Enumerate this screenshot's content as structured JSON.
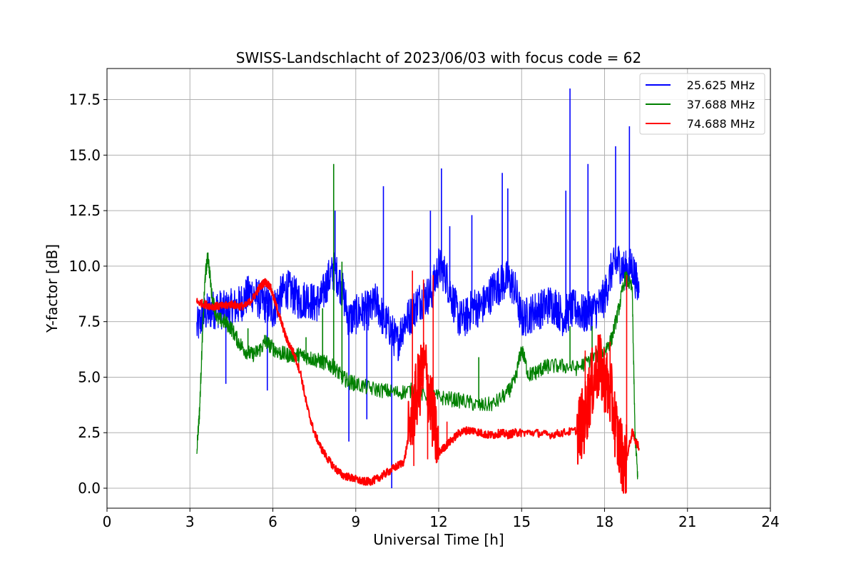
{
  "chart_data": {
    "type": "line",
    "title": "SWISS-Landschlacht of 2023/06/03 with focus code = 62",
    "xlabel": "Universal Time [h]",
    "ylabel": "Y-factor [dB]",
    "xlim": [
      0,
      24
    ],
    "ylim": [
      -0.9,
      18.9
    ],
    "xticks": [
      0,
      3,
      6,
      9,
      12,
      15,
      18,
      21,
      24
    ],
    "xtick_labels": [
      "0",
      "3",
      "6",
      "9",
      "12",
      "15",
      "18",
      "21",
      "24"
    ],
    "yticks": [
      0.0,
      2.5,
      5.0,
      7.5,
      10.0,
      12.5,
      15.0,
      17.5
    ],
    "ytick_labels": [
      "0.0",
      "2.5",
      "5.0",
      "7.5",
      "10.0",
      "12.5",
      "15.0",
      "17.5"
    ],
    "grid": true,
    "legend_position": "top-right",
    "series": [
      {
        "name": "25.625 MHz",
        "color": "#0000ff",
        "x": [
          3.25,
          3.5,
          3.75,
          4.0,
          4.25,
          4.5,
          4.75,
          5.0,
          5.25,
          5.5,
          5.75,
          6.0,
          6.25,
          6.5,
          6.75,
          7.0,
          7.25,
          7.5,
          7.75,
          8.0,
          8.25,
          8.5,
          8.75,
          9.0,
          9.25,
          9.5,
          9.75,
          10.0,
          10.25,
          10.5,
          10.75,
          11.0,
          11.25,
          11.5,
          11.75,
          12.0,
          12.25,
          12.5,
          12.75,
          13.0,
          13.25,
          13.5,
          13.75,
          14.0,
          14.25,
          14.5,
          14.75,
          15.0,
          15.25,
          15.5,
          15.75,
          16.0,
          16.25,
          16.5,
          16.75,
          17.0,
          17.25,
          17.5,
          17.75,
          18.0,
          18.25,
          18.5,
          18.75,
          19.0,
          19.25
        ],
        "y": [
          7.2,
          7.8,
          8.0,
          8.1,
          8.0,
          8.1,
          8.2,
          8.6,
          8.8,
          8.5,
          8.3,
          8.0,
          8.6,
          9.0,
          8.7,
          8.4,
          8.6,
          8.3,
          8.5,
          9.4,
          9.8,
          9.0,
          7.6,
          7.8,
          8.0,
          8.0,
          8.4,
          7.6,
          7.2,
          6.5,
          7.5,
          7.8,
          8.4,
          8.6,
          8.8,
          10.0,
          9.6,
          8.5,
          7.6,
          7.7,
          8.2,
          8.1,
          8.5,
          9.0,
          9.2,
          9.4,
          9.0,
          7.6,
          7.8,
          8.0,
          8.1,
          8.3,
          8.2,
          7.7,
          8.0,
          8.1,
          7.8,
          8.0,
          8.1,
          8.6,
          9.8,
          10.2,
          9.8,
          10.0,
          8.8
        ],
        "spikes": [
          [
            4.3,
            4.7
          ],
          [
            5.8,
            4.4
          ],
          [
            8.25,
            12.5
          ],
          [
            8.75,
            2.1
          ],
          [
            9.4,
            3.1
          ],
          [
            10.0,
            13.6
          ],
          [
            10.3,
            0.0
          ],
          [
            11.7,
            12.5
          ],
          [
            12.1,
            14.4
          ],
          [
            12.4,
            11.8
          ],
          [
            13.2,
            12.3
          ],
          [
            14.3,
            14.2
          ],
          [
            14.5,
            13.5
          ],
          [
            16.6,
            13.4
          ],
          [
            16.75,
            18.0
          ],
          [
            17.4,
            14.6
          ],
          [
            18.4,
            15.4
          ],
          [
            18.9,
            16.3
          ]
        ]
      },
      {
        "name": "37.688 MHz",
        "color": "#008000",
        "x": [
          3.25,
          3.35,
          3.45,
          3.55,
          3.65,
          3.8,
          4.0,
          4.25,
          4.5,
          4.75,
          5.0,
          5.25,
          5.5,
          5.75,
          6.0,
          6.25,
          6.5,
          6.75,
          7.0,
          7.25,
          7.5,
          7.75,
          8.0,
          8.25,
          8.5,
          8.75,
          9.0,
          9.5,
          10.0,
          10.5,
          11.0,
          11.5,
          12.0,
          12.5,
          13.0,
          13.5,
          14.0,
          14.5,
          14.75,
          15.0,
          15.25,
          15.5,
          15.75,
          16.0,
          16.5,
          17.0,
          17.5,
          18.0,
          18.25,
          18.5,
          18.75,
          19.0,
          19.1,
          19.2
        ],
        "y": [
          1.8,
          3.5,
          6.8,
          9.5,
          10.5,
          8.6,
          7.6,
          7.5,
          7.2,
          6.6,
          6.2,
          6.0,
          6.2,
          6.6,
          6.3,
          6.1,
          6.0,
          6.0,
          6.0,
          5.9,
          5.8,
          5.7,
          5.6,
          5.4,
          5.0,
          4.8,
          4.7,
          4.5,
          4.4,
          4.3,
          4.4,
          4.2,
          4.1,
          4.0,
          3.9,
          3.7,
          3.8,
          4.3,
          4.8,
          6.3,
          5.1,
          5.2,
          5.4,
          5.5,
          5.5,
          5.4,
          5.8,
          6.2,
          6.7,
          8.0,
          9.5,
          9.0,
          2.5,
          0.5
        ],
        "spikes": [
          [
            5.1,
            7.2
          ],
          [
            5.7,
            6.9
          ],
          [
            7.2,
            6.8
          ],
          [
            7.8,
            8.1
          ],
          [
            8.2,
            14.6
          ],
          [
            8.5,
            10.2
          ],
          [
            13.45,
            5.9
          ],
          [
            16.75,
            7.3
          ],
          [
            17.55,
            7.3
          ]
        ]
      },
      {
        "name": "74.688 MHz",
        "color": "#ff0000",
        "x": [
          3.25,
          3.5,
          3.75,
          4.0,
          4.25,
          4.5,
          4.75,
          5.0,
          5.25,
          5.5,
          5.7,
          5.9,
          6.1,
          6.3,
          6.5,
          6.75,
          7.0,
          7.25,
          7.5,
          7.75,
          8.0,
          8.25,
          8.5,
          8.75,
          9.0,
          9.25,
          9.5,
          9.75,
          10.0,
          10.25,
          10.5,
          10.75,
          11.0,
          11.25,
          11.5,
          11.75,
          12.0,
          12.25,
          12.5,
          12.75,
          13.0,
          13.25,
          13.5,
          13.75,
          14.0,
          14.25,
          14.5,
          14.75,
          15.0,
          15.5,
          16.0,
          16.5,
          17.0,
          17.25,
          17.5,
          17.75,
          18.0,
          18.25,
          18.5,
          18.75,
          19.0,
          19.25
        ],
        "y": [
          8.4,
          8.3,
          8.2,
          8.2,
          8.2,
          8.3,
          8.2,
          8.2,
          8.5,
          9.0,
          9.3,
          9.1,
          8.3,
          7.5,
          6.7,
          6.1,
          5.2,
          3.6,
          2.5,
          1.8,
          1.3,
          0.9,
          0.6,
          0.5,
          0.4,
          0.3,
          0.3,
          0.4,
          0.6,
          0.8,
          1.0,
          1.2,
          3.0,
          4.5,
          5.5,
          3.5,
          1.6,
          1.9,
          2.2,
          2.5,
          2.6,
          2.6,
          2.5,
          2.4,
          2.4,
          2.5,
          2.4,
          2.5,
          2.5,
          2.5,
          2.4,
          2.5,
          2.6,
          3.0,
          4.5,
          5.5,
          5.0,
          4.0,
          2.0,
          1.1,
          2.5,
          1.8
        ],
        "spikes": [
          [
            11.05,
            9.8
          ],
          [
            11.1,
            1.0
          ],
          [
            11.45,
            9.4
          ],
          [
            11.6,
            1.3
          ],
          [
            11.8,
            9.6
          ],
          [
            12.3,
            3.0
          ],
          [
            17.3,
            6.2
          ],
          [
            17.8,
            6.9
          ],
          [
            18.2,
            6.6
          ],
          [
            18.55,
            1.0
          ],
          [
            18.8,
            9.6
          ]
        ]
      }
    ]
  }
}
